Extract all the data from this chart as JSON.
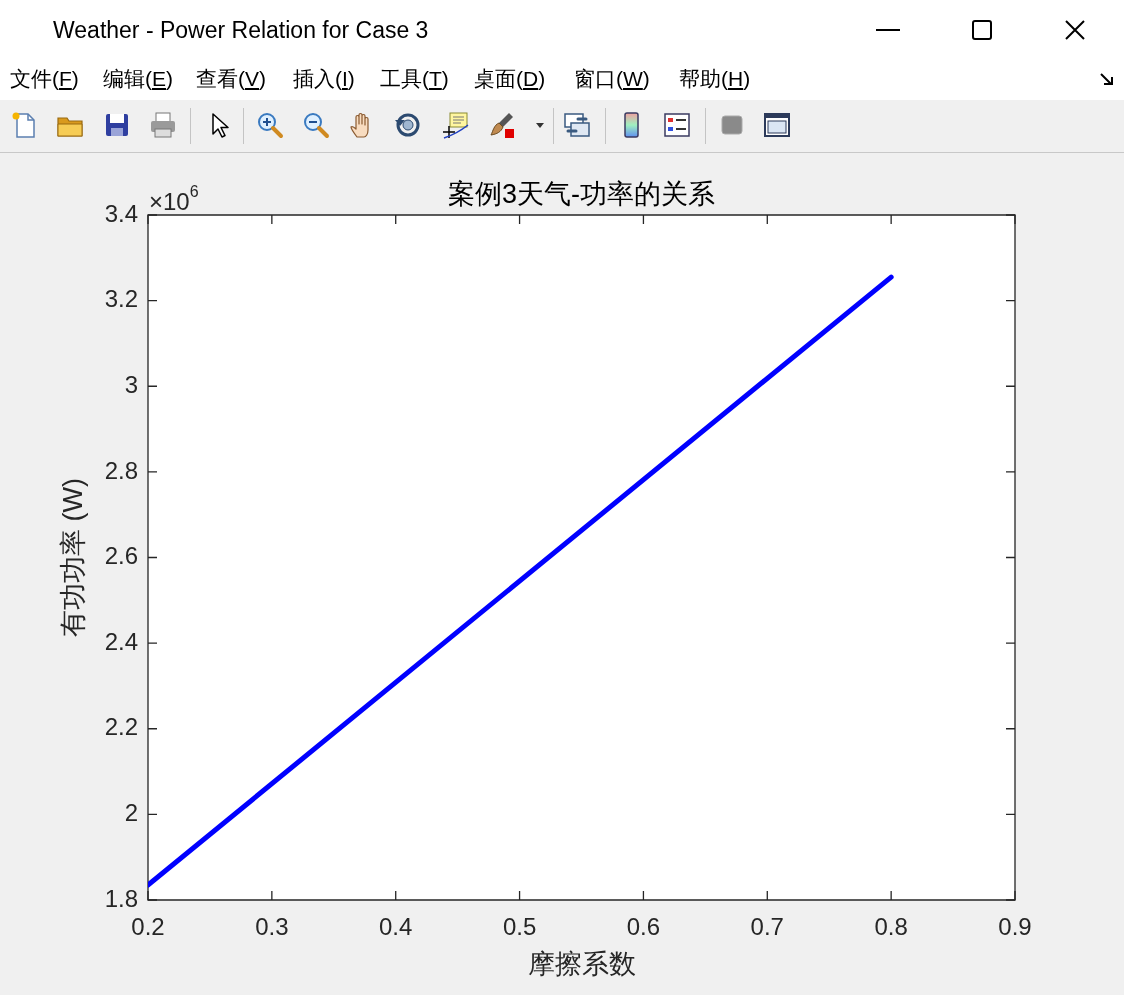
{
  "chart_data": {
    "type": "line",
    "title": "案例3天气-功率的关系",
    "xlabel": "摩擦系数",
    "ylabel": "有功功率 (W)",
    "x": [
      0.2,
      0.8
    ],
    "series": [
      {
        "color": "#0000ff",
        "values": [
          1.835,
          3.255
        ]
      }
    ],
    "xlim": [
      0.2,
      0.9
    ],
    "xticks": [
      0.2,
      0.3,
      0.4,
      0.5,
      0.6,
      0.7,
      0.8,
      0.9
    ],
    "ylim": [
      1.8,
      3.4
    ],
    "yticks": [
      1.8,
      2,
      2.2,
      2.4,
      2.6,
      2.8,
      3,
      3.2,
      3.4
    ],
    "annotations": [
      "Weather - Power Relation for Case 3",
      "文件(F)",
      "编辑(E)",
      "查看(V)",
      "插入(I)",
      "工具(T)",
      "桌面(D)",
      "窗口(W)",
      "帮助(H)",
      "×10$^{6}$"
    ]
  }
}
